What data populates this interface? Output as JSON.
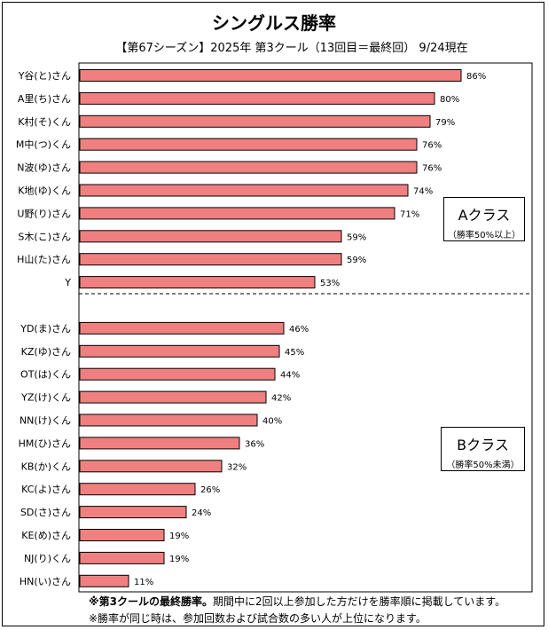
{
  "chart_data": {
    "type": "bar",
    "orientation": "horizontal",
    "title": "シングルス勝率",
    "subtitle": "【第67シーズン】2025年 第3クール（13回目＝最終回） 9/24現在",
    "value_suffix": "%",
    "xlim": [
      0,
      100
    ],
    "bar_color": "#f08080",
    "groups": [
      {
        "label": "Aクラス",
        "condition": "（勝率50%以上）",
        "categories": [
          "Y谷(と)さん",
          "A里(ち)さん",
          "K村(そ)くん",
          "M中(つ)くん",
          "N波(ゆ)さん",
          "K地(ゆ)くん",
          "U野(り)さん",
          "S木(こ)さん",
          "H山(た)さん",
          "Y"
        ],
        "values": [
          86,
          80,
          79,
          76,
          76,
          74,
          71,
          59,
          59,
          53
        ]
      },
      {
        "label": "Bクラス",
        "condition": "（勝率50%未満）",
        "categories": [
          "YD(ま)さん",
          "KZ(ゆ)さん",
          "OT(は)くん",
          "YZ(け)くん",
          "NN(け)くん",
          "HM(ひ)さん",
          "KB(か)くん",
          "KC(よ)さん",
          "SD(さ)さん",
          "KE(め)さん",
          "NJ(り)くん",
          "HN(い)さん"
        ],
        "values": [
          46,
          45,
          44,
          42,
          40,
          36,
          32,
          26,
          24,
          19,
          19,
          11
        ]
      }
    ]
  },
  "notes": {
    "line1_bold": "※第3クールの最終勝率。",
    "line1_rest": "期間中に2回以上参加した方だけを勝率順に掲載しています。",
    "line2": "※勝率が同じ時は、参加回数および試合数の多い人が上位になります。"
  }
}
